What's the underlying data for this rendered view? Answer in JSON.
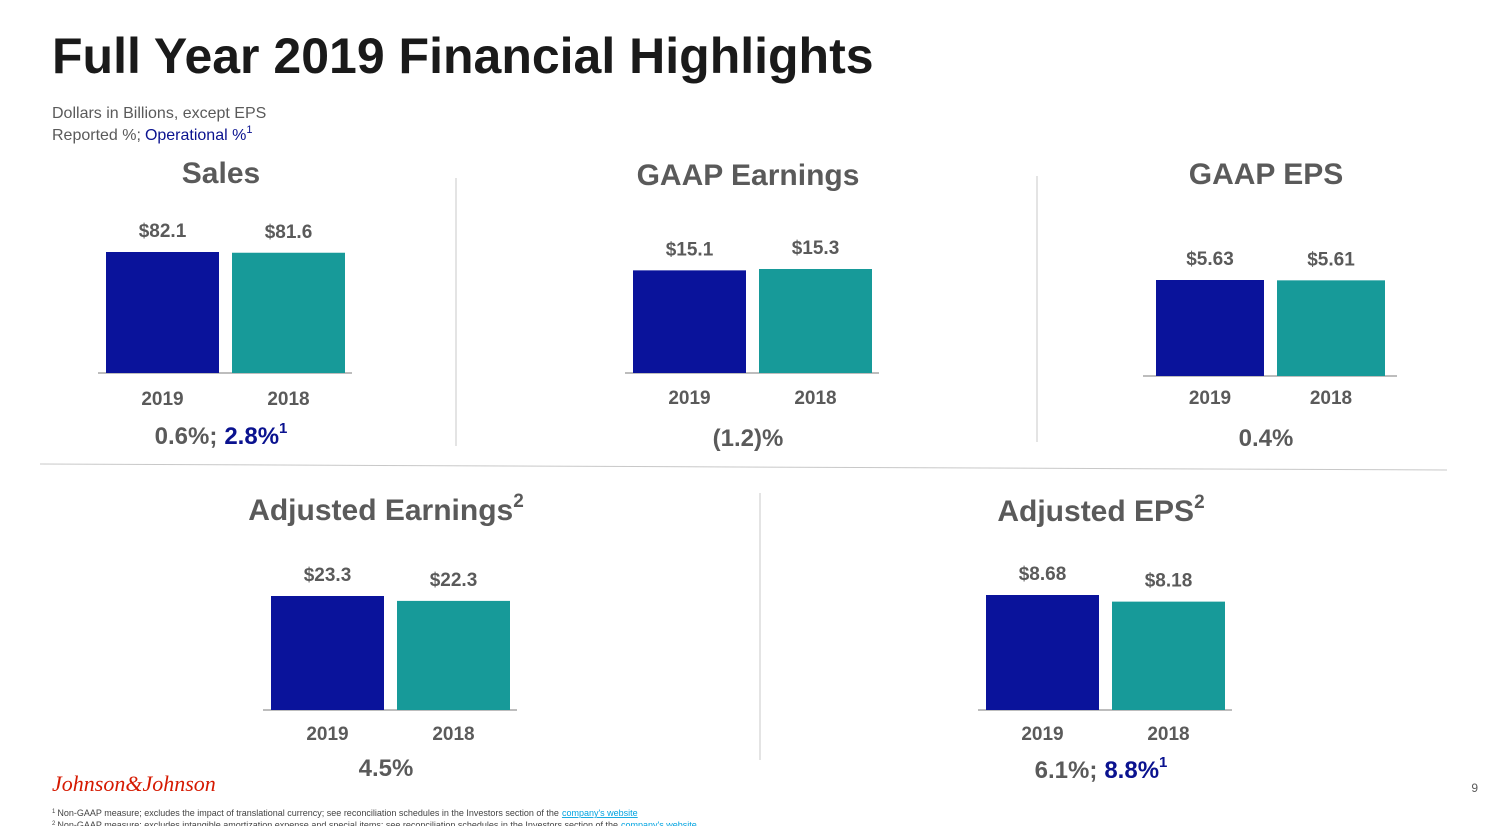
{
  "title": "Full Year 2019 Financial Highlights",
  "subtitle": {
    "line1": "Dollars in Billions, except EPS",
    "reported": "Reported %;",
    "operational": "Operational %",
    "note": "1"
  },
  "chart_data": [
    {
      "type": "bar",
      "title": "Sales",
      "categories": [
        "2019",
        "2018"
      ],
      "values": [
        82.1,
        81.6
      ],
      "value_labels": [
        "$82.1",
        "$81.6"
      ],
      "colors": [
        "#0a139b",
        "#179a99"
      ],
      "growth": {
        "reported": "0.6%;",
        "operational": "2.8%",
        "note": "1"
      }
    },
    {
      "type": "bar",
      "title": "GAAP Earnings",
      "categories": [
        "2019",
        "2018"
      ],
      "values": [
        15.1,
        15.3
      ],
      "value_labels": [
        "$15.1",
        "$15.3"
      ],
      "colors": [
        "#0a139b",
        "#179a99"
      ],
      "growth": {
        "reported": "(1.2)%"
      }
    },
    {
      "type": "bar",
      "title": "GAAP EPS",
      "categories": [
        "2019",
        "2018"
      ],
      "values": [
        5.63,
        5.61
      ],
      "value_labels": [
        "$5.63",
        "$5.61"
      ],
      "colors": [
        "#0a139b",
        "#179a99"
      ],
      "growth": {
        "reported": "0.4%"
      }
    },
    {
      "type": "bar",
      "title": "Adjusted Earnings",
      "title_note": "2",
      "categories": [
        "2019",
        "2018"
      ],
      "values": [
        23.3,
        22.3
      ],
      "value_labels": [
        "$23.3",
        "$22.3"
      ],
      "colors": [
        "#0a139b",
        "#179a99"
      ],
      "growth": {
        "reported": "4.5%"
      }
    },
    {
      "type": "bar",
      "title": "Adjusted EPS",
      "title_note": "2",
      "categories": [
        "2019",
        "2018"
      ],
      "values": [
        8.68,
        8.18
      ],
      "value_labels": [
        "$8.68",
        "$8.18"
      ],
      "colors": [
        "#0a139b",
        "#179a99"
      ],
      "growth": {
        "reported": "6.1%;",
        "operational": "8.8%",
        "note": "1"
      }
    }
  ],
  "logo": "Johnson&Johnson",
  "page_number": "9",
  "footnotes": [
    {
      "mark": "1",
      "text": "Non-GAAP measure; excludes the impact of translational currency; see reconciliation schedules in the Investors section of the",
      "link": "company's website"
    },
    {
      "mark": "2",
      "text": "Non-GAAP measure; excludes intangible amortization expense and special items; see reconciliation schedules in the Investors section of the",
      "link": "company's website"
    }
  ]
}
